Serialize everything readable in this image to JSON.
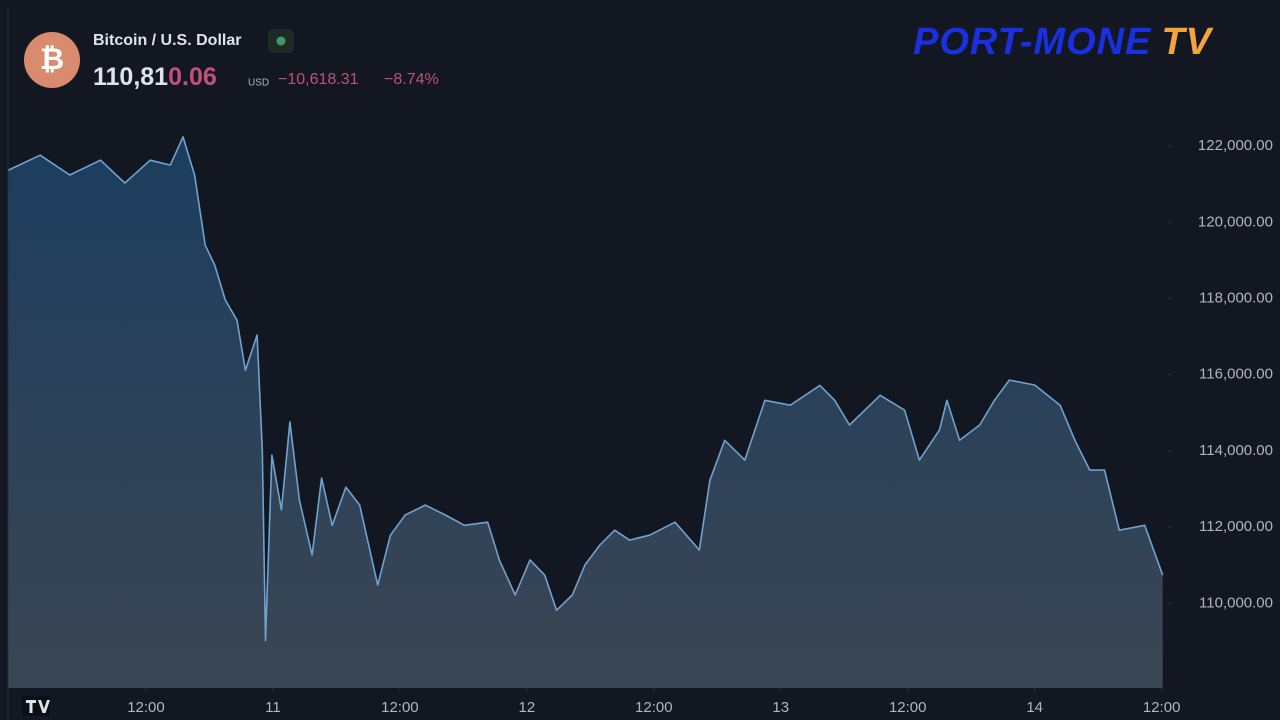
{
  "header": {
    "icon": "₿",
    "title": "Bitcoin / U.S. Dollar",
    "price": [
      "110,81",
      "0.06"
    ],
    "currency": "USD",
    "change": "−10,618.31",
    "change_pct": "−8.74%",
    "logo": [
      "PORT-MONE",
      "TV"
    ]
  },
  "chart_data": {
    "type": "area",
    "color": "#6fa3cf",
    "x": [
      -1.0,
      2.0,
      4.8,
      7.7,
      10.0,
      12.4,
      14.3,
      15.5,
      16.6,
      17.6,
      18.5,
      19.5,
      20.6,
      21.4,
      22.5,
      23.0,
      23.3,
      23.9,
      24.8,
      25.6,
      26.5,
      27.7,
      28.6,
      29.6,
      30.9,
      32.2,
      33.9,
      35.1,
      36.5,
      38.4,
      40.3,
      42.1,
      44.3,
      45.4,
      46.9,
      48.3,
      49.7,
      50.8,
      52.3,
      53.5,
      54.9,
      56.3,
      57.7,
      59.6,
      62.0,
      64.3,
      65.3,
      66.7,
      68.6,
      70.5,
      72.9,
      75.7,
      77.1,
      78.5,
      81.4,
      83.7,
      85.1,
      87.0,
      87.7,
      88.9,
      90.8,
      92.2,
      93.6,
      96.0,
      98.4,
      99.8,
      101.2,
      102.6,
      104.0,
      106.4,
      108.1
    ],
    "values": [
      121370,
      121760,
      121240,
      121630,
      121030,
      121630,
      121500,
      122240,
      121240,
      119400,
      118880,
      117960,
      117430,
      116120,
      117040,
      114020,
      109030,
      113890,
      112450,
      114760,
      112710,
      111270,
      113290,
      112050,
      113050,
      112580,
      110480,
      111790,
      112320,
      112580,
      112320,
      112050,
      112130,
      111140,
      110220,
      111140,
      110740,
      109820,
      110220,
      111010,
      111530,
      111920,
      111660,
      111790,
      112130,
      111400,
      113230,
      114280,
      113760,
      115330,
      115200,
      115720,
      115330,
      114680,
      115460,
      115070,
      113760,
      114550,
      115330,
      114280,
      114680,
      115330,
      115860,
      115730,
      115200,
      114280,
      113500,
      113500,
      111920,
      112050,
      110740
    ],
    "xlim": [
      -1.04,
      108.6
    ],
    "xticks": [
      {
        "value": 12,
        "label": "12:00"
      },
      {
        "value": 24,
        "label": "11"
      },
      {
        "value": 36,
        "label": "12:00"
      },
      {
        "value": 48,
        "label": "12"
      },
      {
        "value": 60,
        "label": "12:00"
      },
      {
        "value": 72,
        "label": "13"
      },
      {
        "value": 84,
        "label": "12:00"
      },
      {
        "value": 96,
        "label": "14"
      },
      {
        "value": 108,
        "label": "12:00"
      }
    ],
    "ylim": [
      107780,
      123340
    ],
    "yticks": [
      {
        "value": 110000,
        "label": "110,000.00"
      },
      {
        "value": 112000,
        "label": "112,000.00"
      },
      {
        "value": 114000,
        "label": "114,000.00"
      },
      {
        "value": 116000,
        "label": "116,000.00"
      },
      {
        "value": 118000,
        "label": "118,000.00"
      },
      {
        "value": 120000,
        "label": "120,000.00"
      },
      {
        "value": 122000,
        "label": "122,000.00"
      }
    ]
  }
}
